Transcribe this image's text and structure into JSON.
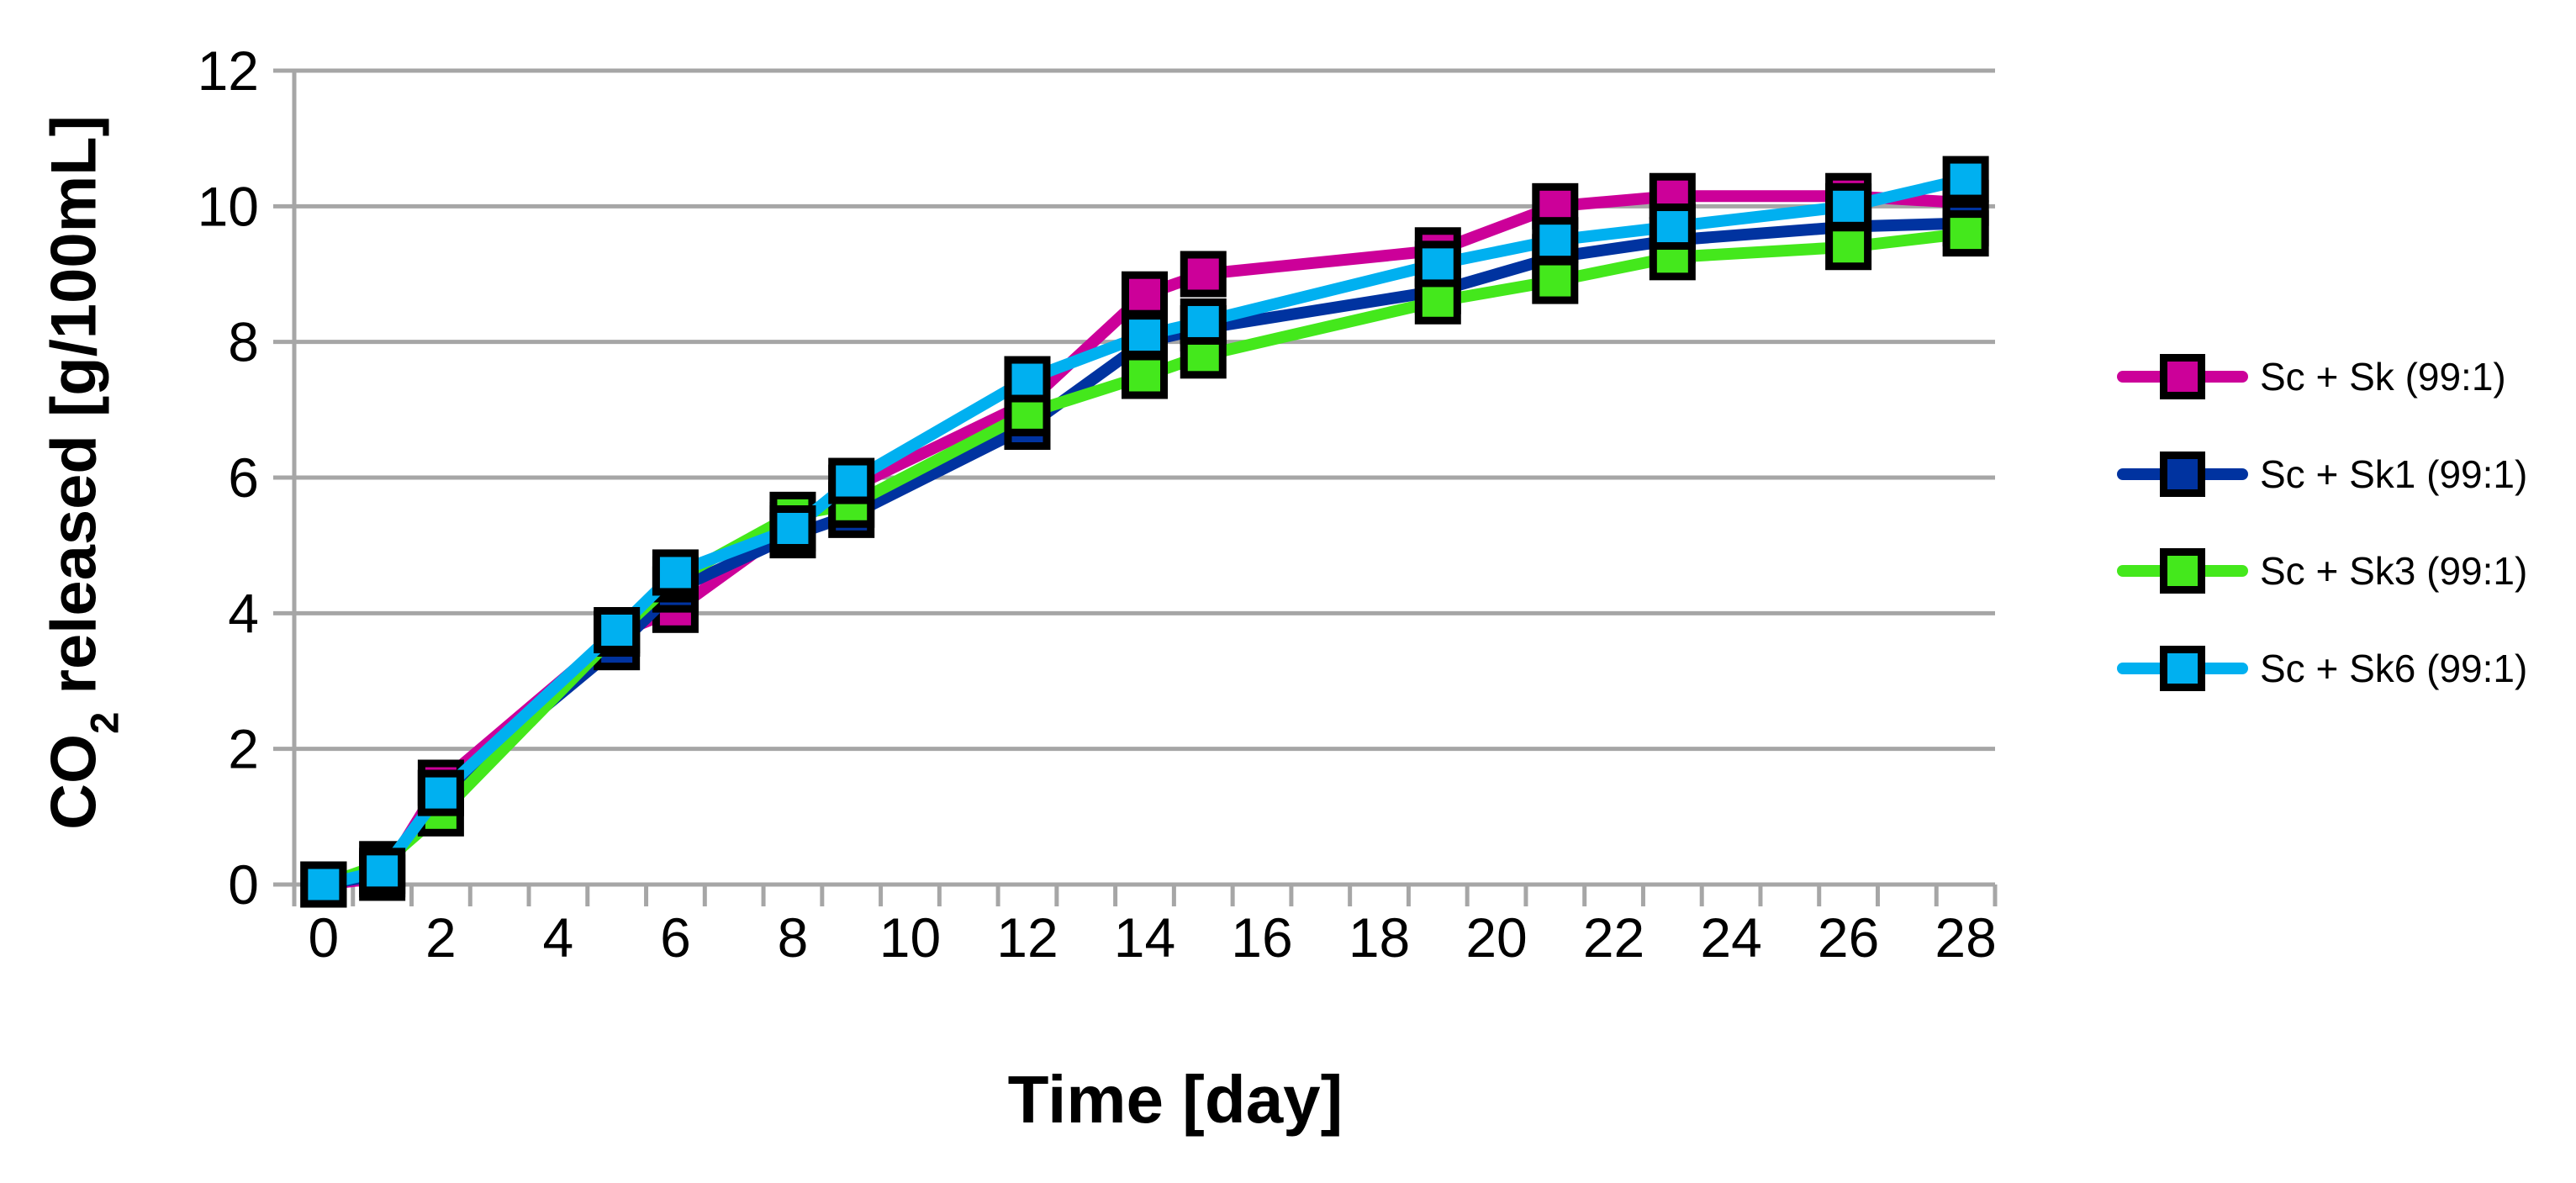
{
  "chart_data": {
    "type": "line",
    "title": "",
    "xlabel": "Time [day]",
    "ylabel": "CO2 released [g/100mL]",
    "ylabel_parts": {
      "prefix": "CO",
      "sub": "2",
      "suffix": " released [g/100mL]"
    },
    "x": [
      0,
      1,
      2,
      5,
      6,
      8,
      9,
      12,
      14,
      15,
      19,
      21,
      23,
      26,
      28
    ],
    "series": [
      {
        "name": "Sc + Sk (99:1)",
        "color": "#CC0099",
        "values": [
          0,
          0.1,
          1.5,
          3.7,
          4.05,
          5.3,
          5.85,
          7.1,
          8.7,
          9.0,
          9.35,
          10.0,
          10.15,
          10.15,
          10.05
        ]
      },
      {
        "name": "Sc + Sk1 (99:1)",
        "color": "#0033A0",
        "values": [
          0,
          0.15,
          1.35,
          3.5,
          4.35,
          5.15,
          5.45,
          6.75,
          8.0,
          8.2,
          8.75,
          9.25,
          9.5,
          9.7,
          9.75
        ]
      },
      {
        "name": "Sc + Sk3 (99:1)",
        "color": "#44E81C",
        "values": [
          0,
          0.3,
          1.05,
          3.7,
          4.5,
          5.45,
          5.6,
          6.95,
          7.5,
          7.8,
          8.6,
          8.9,
          9.25,
          9.4,
          9.6
        ]
      },
      {
        "name": "Sc + Sk6 (99:1)",
        "color": "#00B0F0",
        "values": [
          0,
          0.2,
          1.35,
          3.75,
          4.6,
          5.25,
          5.95,
          7.45,
          8.1,
          8.3,
          9.15,
          9.5,
          9.7,
          10.0,
          10.4
        ]
      }
    ],
    "x_ticks": [
      0,
      2,
      4,
      6,
      8,
      10,
      12,
      14,
      16,
      18,
      20,
      22,
      24,
      26,
      28
    ],
    "y_ticks": [
      0,
      2,
      4,
      6,
      8,
      10,
      12
    ],
    "xlim": [
      -0.5,
      28.5
    ],
    "ylim": [
      0,
      12
    ],
    "grid": "horizontal",
    "grid_color": "#A6A6A6",
    "marker": "square",
    "legend_position": "right"
  }
}
